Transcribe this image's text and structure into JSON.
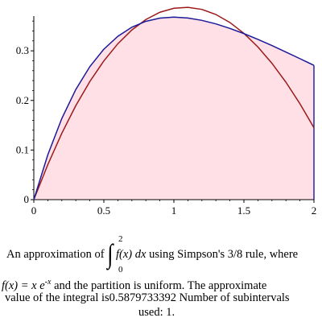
{
  "chart_data": {
    "type": "area",
    "x_ticks": [
      "0",
      "0.5",
      "1",
      "1.5",
      "2"
    ],
    "y_ticks": [
      "0",
      "0.1",
      "0.2",
      "0.3"
    ],
    "xlim": [
      0,
      2
    ],
    "ylim": [
      0,
      0.37
    ],
    "function_curve": {
      "color": "#1a1a9a",
      "x": [
        0,
        0.1,
        0.2,
        0.3,
        0.4,
        0.5,
        0.6,
        0.7,
        0.8,
        0.9,
        1.0,
        1.1,
        1.2,
        1.3,
        1.4,
        1.5,
        1.6,
        1.7,
        1.8,
        1.9,
        2.0
      ],
      "y": [
        0,
        0.0905,
        0.1637,
        0.2222,
        0.2681,
        0.3033,
        0.3293,
        0.3476,
        0.3595,
        0.3659,
        0.3679,
        0.3662,
        0.3614,
        0.3543,
        0.3452,
        0.3347,
        0.323,
        0.3106,
        0.2975,
        0.2842,
        0.2707
      ]
    },
    "approx_curve": {
      "color": "#9a1a1a",
      "x": [
        0,
        0.1,
        0.2,
        0.3,
        0.4,
        0.5,
        0.6,
        0.7,
        0.8,
        0.9,
        1.0,
        1.1,
        1.2,
        1.3,
        1.4,
        1.5,
        1.6,
        1.7,
        1.8,
        1.9,
        2.0
      ],
      "y": [
        0,
        0.0706,
        0.1338,
        0.1896,
        0.2382,
        0.2797,
        0.3143,
        0.342,
        0.3631,
        0.3777,
        0.3858,
        0.3877,
        0.3835,
        0.3732,
        0.3571,
        0.3352,
        0.3078,
        0.2749,
        0.2367,
        0.1933,
        0.1449
      ]
    },
    "fill_color": "#ffe0e6"
  },
  "caption": {
    "part1": "An approximation of",
    "upper_limit": "2",
    "lower_limit": "0",
    "integrand": "f(x) dx",
    "part2": "using Simpson's 3/8 rule, where",
    "func_def": "f(x) = x e",
    "exponent": "-x",
    "part3": "and the partition is uniform.  The approximate",
    "part4": "value of the integral is",
    "value": "0.5879733392",
    "part5": "Number of subintervals",
    "part6": "used:",
    "subintervals": "1."
  }
}
